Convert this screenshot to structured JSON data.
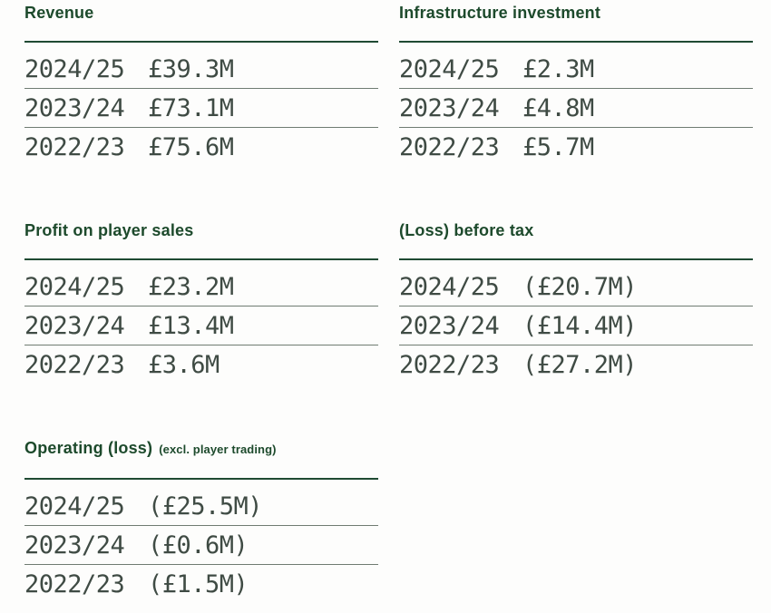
{
  "colors": {
    "heading_green": "#1d4a2c",
    "rule_green": "#1f4a33",
    "value_text": "#3f4b44",
    "separator_grey": "#6f7c72",
    "background": "#fdfdfc"
  },
  "sections": [
    {
      "title": "Revenue",
      "rows": [
        {
          "year": "2024/25",
          "value": "£39.3M"
        },
        {
          "year": "2023/24",
          "value": "£73.1M"
        },
        {
          "year": "2022/23",
          "value": "£75.6M"
        }
      ]
    },
    {
      "title": "Infrastructure investment",
      "rows": [
        {
          "year": "2024/25",
          "value": "£2.3M"
        },
        {
          "year": "2023/24",
          "value": "£4.8M"
        },
        {
          "year": "2022/23",
          "value": "£5.7M"
        }
      ]
    },
    {
      "title": "Profit on player sales",
      "rows": [
        {
          "year": "2024/25",
          "value": "£23.2M"
        },
        {
          "year": "2023/24",
          "value": "£13.4M"
        },
        {
          "year": "2022/23",
          "value": "£3.6M"
        }
      ]
    },
    {
      "title": "(Loss) before tax",
      "rows": [
        {
          "year": "2024/25",
          "value": "(£20.7M)"
        },
        {
          "year": "2023/24",
          "value": "(£14.4M)"
        },
        {
          "year": "2022/23",
          "value": "(£27.2M)"
        }
      ]
    },
    {
      "title": "Operating (loss)",
      "note": "(excl. player trading)",
      "rows": [
        {
          "year": "2024/25",
          "value": "(£25.5M)"
        },
        {
          "year": "2023/24",
          "value": "(£0.6M)"
        },
        {
          "year": "2022/23",
          "value": "(£1.5M)"
        }
      ]
    }
  ],
  "chart_data": [
    {
      "type": "table",
      "title": "Revenue",
      "categories": [
        "2024/25",
        "2023/24",
        "2022/23"
      ],
      "values": [
        39.3,
        73.1,
        75.6
      ],
      "unit": "£M",
      "display_values": [
        "£39.3M",
        "£73.1M",
        "£75.6M"
      ]
    },
    {
      "type": "table",
      "title": "Infrastructure investment",
      "categories": [
        "2024/25",
        "2023/24",
        "2022/23"
      ],
      "values": [
        2.3,
        4.8,
        5.7
      ],
      "unit": "£M",
      "display_values": [
        "£2.3M",
        "£4.8M",
        "£5.7M"
      ]
    },
    {
      "type": "table",
      "title": "Profit on player sales",
      "categories": [
        "2024/25",
        "2023/24",
        "2022/23"
      ],
      "values": [
        23.2,
        13.4,
        3.6
      ],
      "unit": "£M",
      "display_values": [
        "£23.2M",
        "£13.4M",
        "£3.6M"
      ]
    },
    {
      "type": "table",
      "title": "(Loss) before tax",
      "categories": [
        "2024/25",
        "2023/24",
        "2022/23"
      ],
      "values": [
        -20.7,
        -14.4,
        -27.2
      ],
      "unit": "£M",
      "display_values": [
        "(£20.7M)",
        "(£14.4M)",
        "(£27.2M)"
      ]
    },
    {
      "type": "table",
      "title": "Operating (loss) (excl. player trading)",
      "categories": [
        "2024/25",
        "2023/24",
        "2022/23"
      ],
      "values": [
        -25.5,
        -0.6,
        -1.5
      ],
      "unit": "£M",
      "display_values": [
        "(£25.5M)",
        "(£0.6M)",
        "(£1.5M)"
      ]
    }
  ]
}
